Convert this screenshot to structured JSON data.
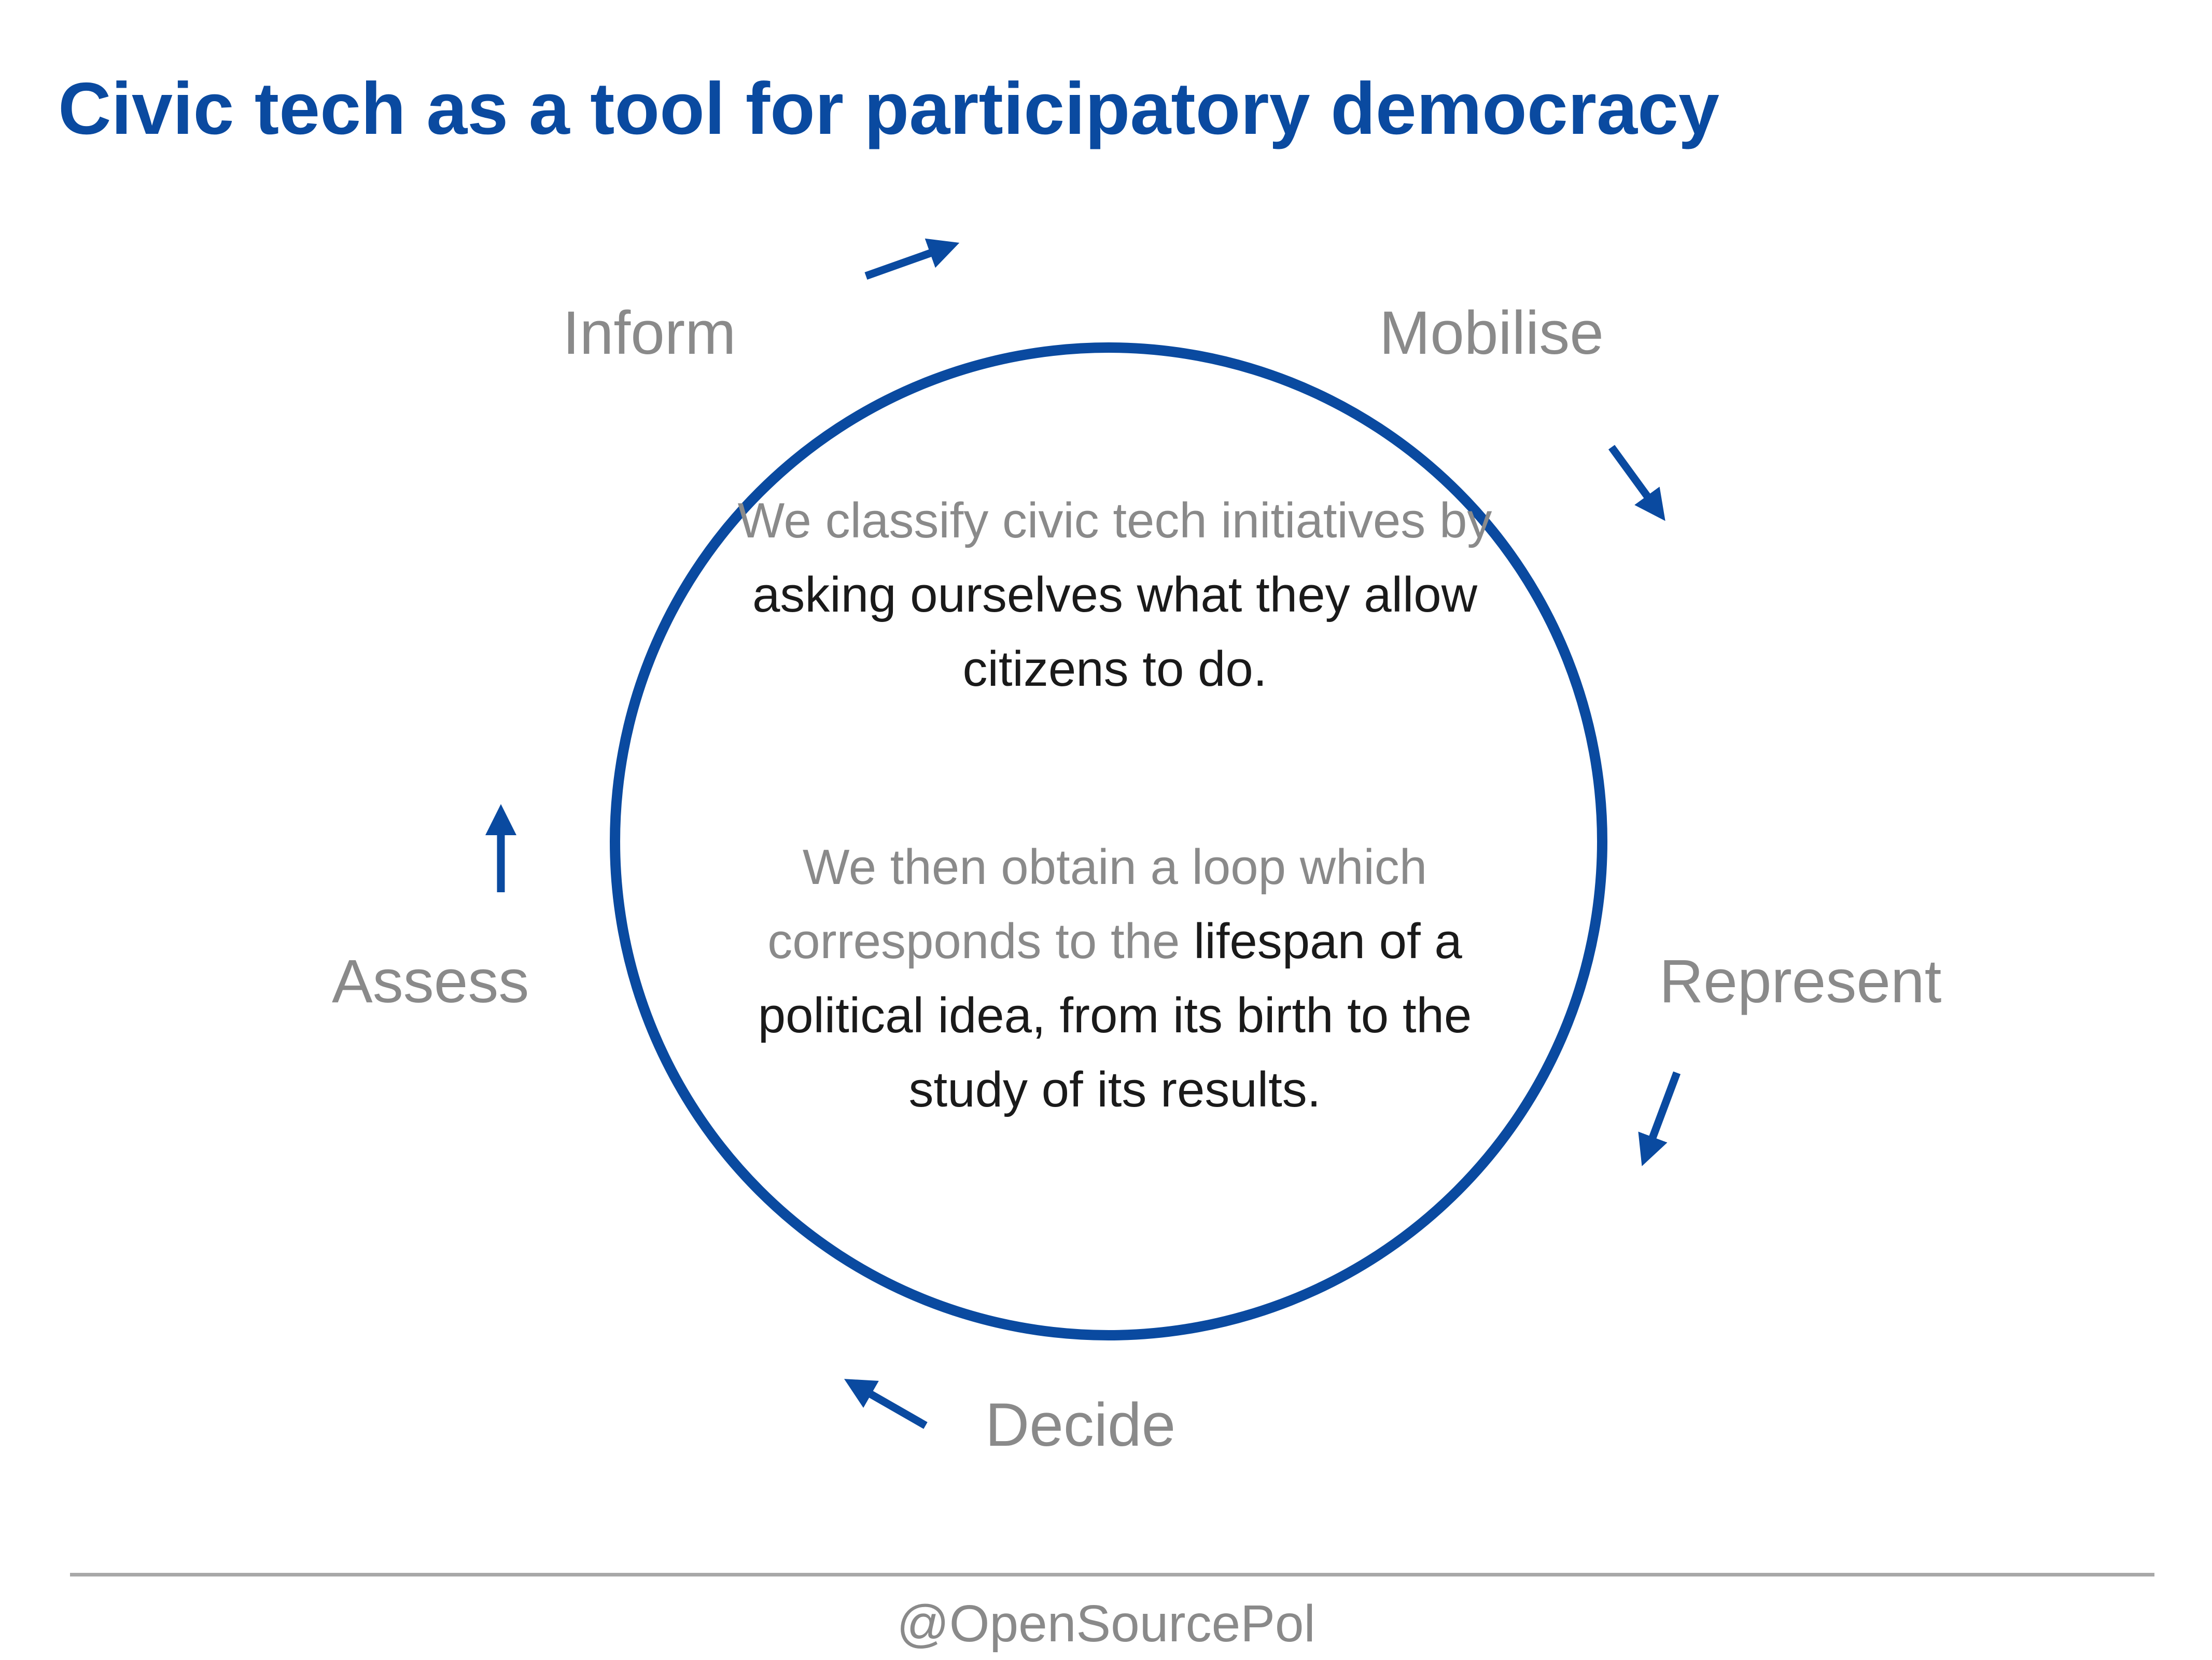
{
  "title": "Civic tech as a tool for participatory democracy",
  "colors": {
    "accent": "#0a4aa0",
    "muted_text": "#8a8a8a",
    "dark_text": "#1a1a1a",
    "divider": "#a8a8a8"
  },
  "stages": [
    "Inform",
    "Mobilise",
    "Represent",
    "Decide",
    "Assess"
  ],
  "center": {
    "paragraph1": {
      "muted": "We classify civic tech initiatives by ",
      "dark": "asking ourselves what they allow citizens to do."
    },
    "paragraph2": {
      "muted": "We then obtain a loop which corresponds to the ",
      "dark": "lifespan of a political idea, from its birth to the study of its results."
    }
  },
  "footer": {
    "handle": "@OpenSourcePol"
  }
}
